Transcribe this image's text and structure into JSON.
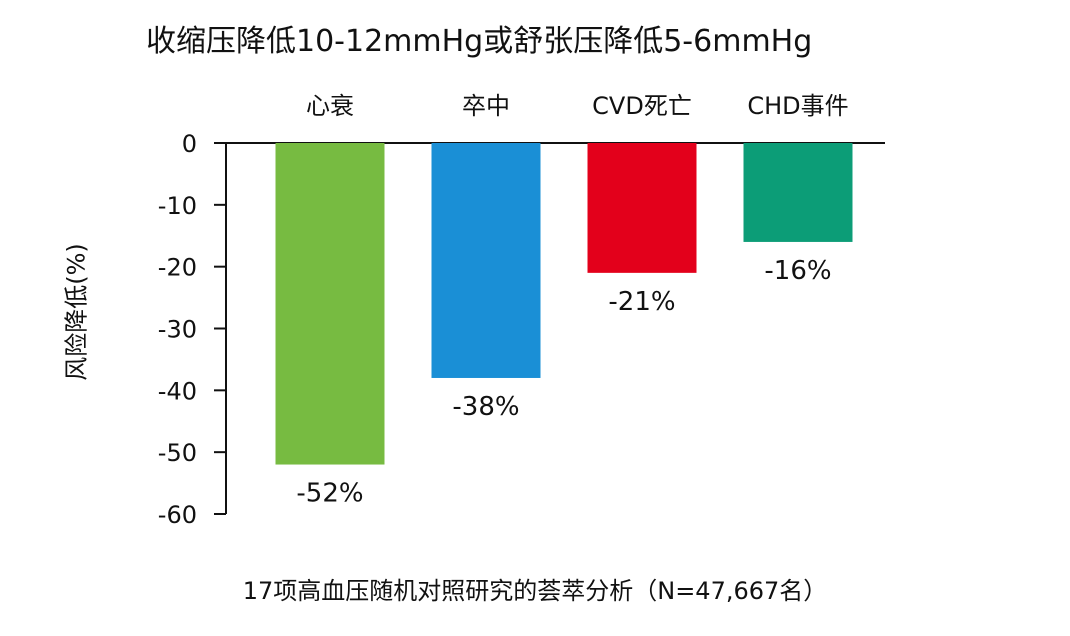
{
  "chart_data": {
    "type": "bar",
    "title": "收缩压降低10-12mmHg或舒张压降低5-6mmHg",
    "categories": [
      "心衰",
      "卒中",
      "CVD死亡",
      "CHD事件"
    ],
    "values": [
      -52,
      -38,
      -21,
      -16
    ],
    "value_labels": [
      "-52%",
      "-38%",
      "-21%",
      "-16%"
    ],
    "colors": [
      "#77bb41",
      "#1a8fd6",
      "#e3001b",
      "#0c9d77"
    ],
    "ylabel": "风险降低(%)",
    "xlabel": "",
    "ylim": [
      -60,
      0
    ],
    "yticks": [
      0,
      -10,
      -20,
      -30,
      -40,
      -50,
      -60
    ],
    "category_labels_position": "top",
    "grid": false,
    "footnote": "17项高血压随机对照研究的荟萃分析（N=47,667名）"
  }
}
